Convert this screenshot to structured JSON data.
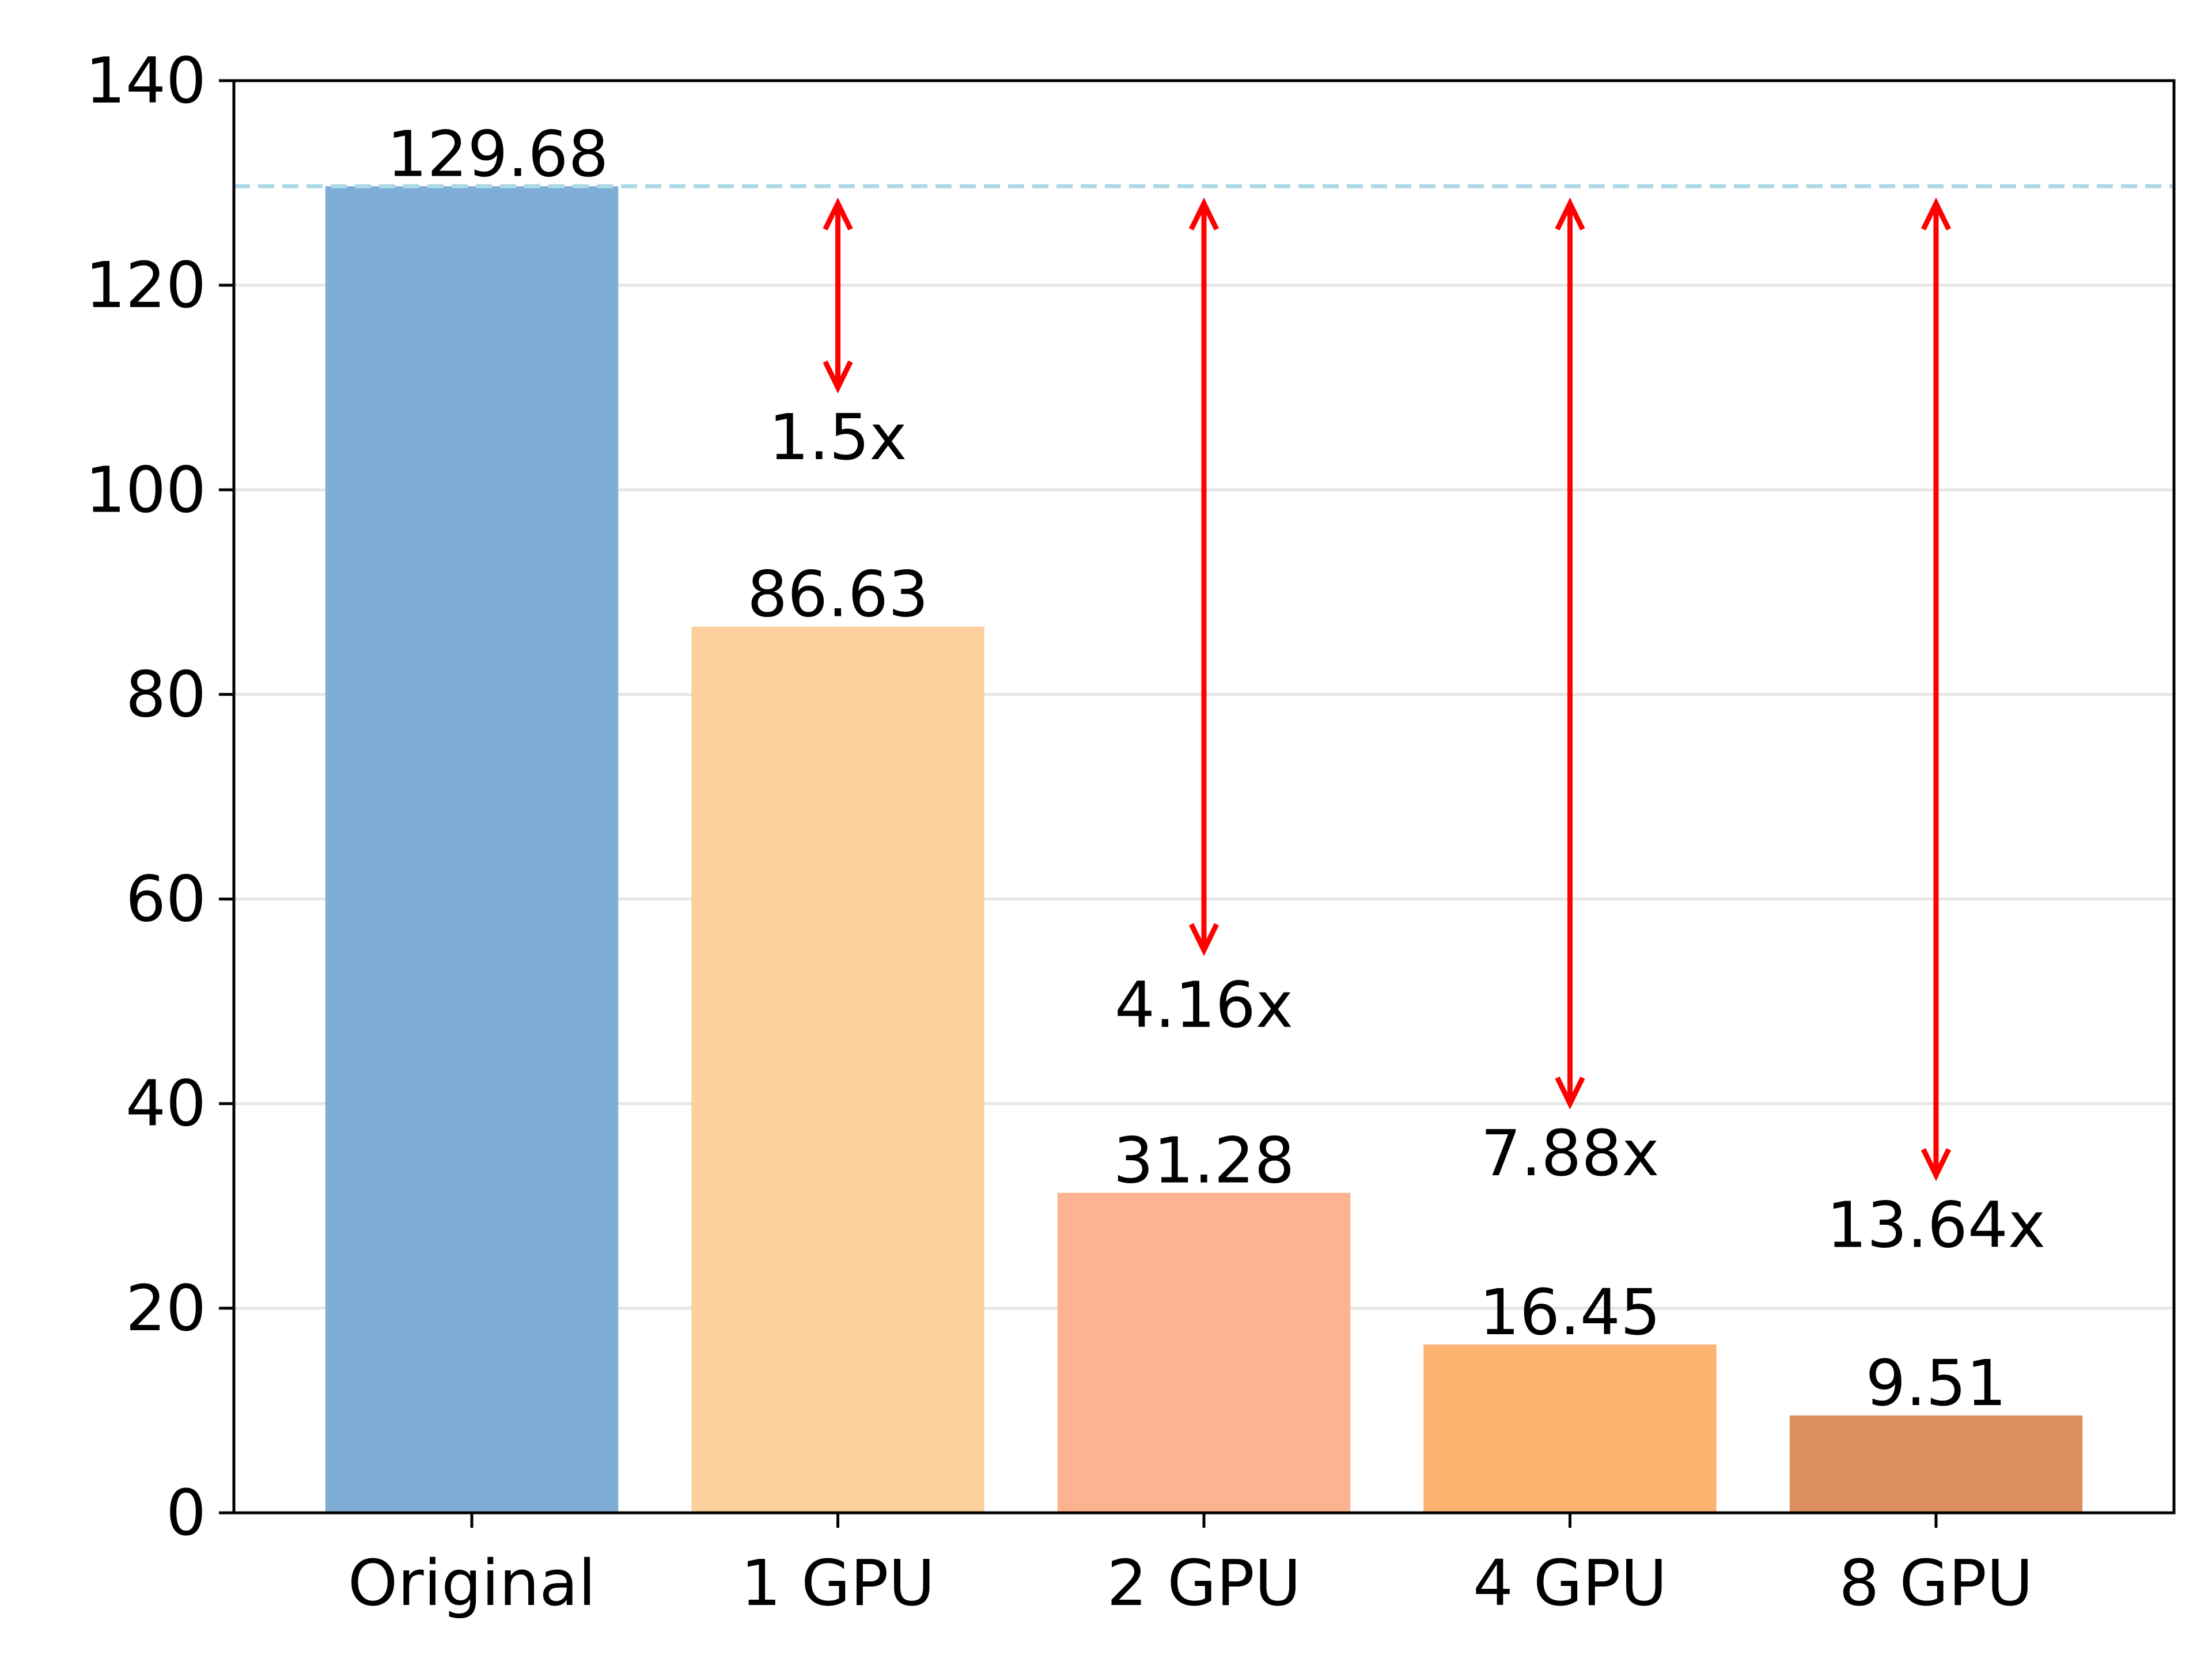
{
  "chart_data": {
    "type": "bar",
    "title": "",
    "xlabel": "",
    "ylabel": "",
    "categories": [
      "Original",
      "1 GPU",
      "2 GPU",
      "4 GPU",
      "8 GPU"
    ],
    "values": [
      129.68,
      86.63,
      31.28,
      16.45,
      9.51
    ],
    "value_labels": [
      "129.68",
      "86.63",
      "31.28",
      "16.45",
      "9.51"
    ],
    "bar_colors": [
      "#7eaed5",
      "#fdd09e",
      "#fdb38f",
      "#fdb26f",
      "#dd8f5f"
    ],
    "ylim": [
      0,
      140
    ],
    "yticks": [
      0,
      20,
      40,
      60,
      80,
      100,
      120,
      140
    ],
    "ytick_labels": [
      "0",
      "20",
      "40",
      "60",
      "80",
      "100",
      "120",
      "140"
    ],
    "grid": "horizontal",
    "grid_color": "#e6e6e6",
    "reference_line": {
      "value": 129.68,
      "style": "dashed",
      "color": "#add8e6"
    },
    "speedups": [
      {
        "category": "1 GPU",
        "label": "1.5x",
        "arrow_from": 128,
        "arrow_to": 110,
        "label_y": 103
      },
      {
        "category": "2 GPU",
        "label": "4.16x",
        "arrow_from": 128,
        "arrow_to": 55,
        "label_y": 47.5
      },
      {
        "category": "4 GPU",
        "label": "7.88x",
        "arrow_from": 128,
        "arrow_to": 40,
        "label_y": 33
      },
      {
        "category": "8 GPU",
        "label": "13.64x",
        "arrow_from": 128,
        "arrow_to": 33,
        "label_y": 26
      }
    ],
    "arrow_color": "#ff0000"
  }
}
